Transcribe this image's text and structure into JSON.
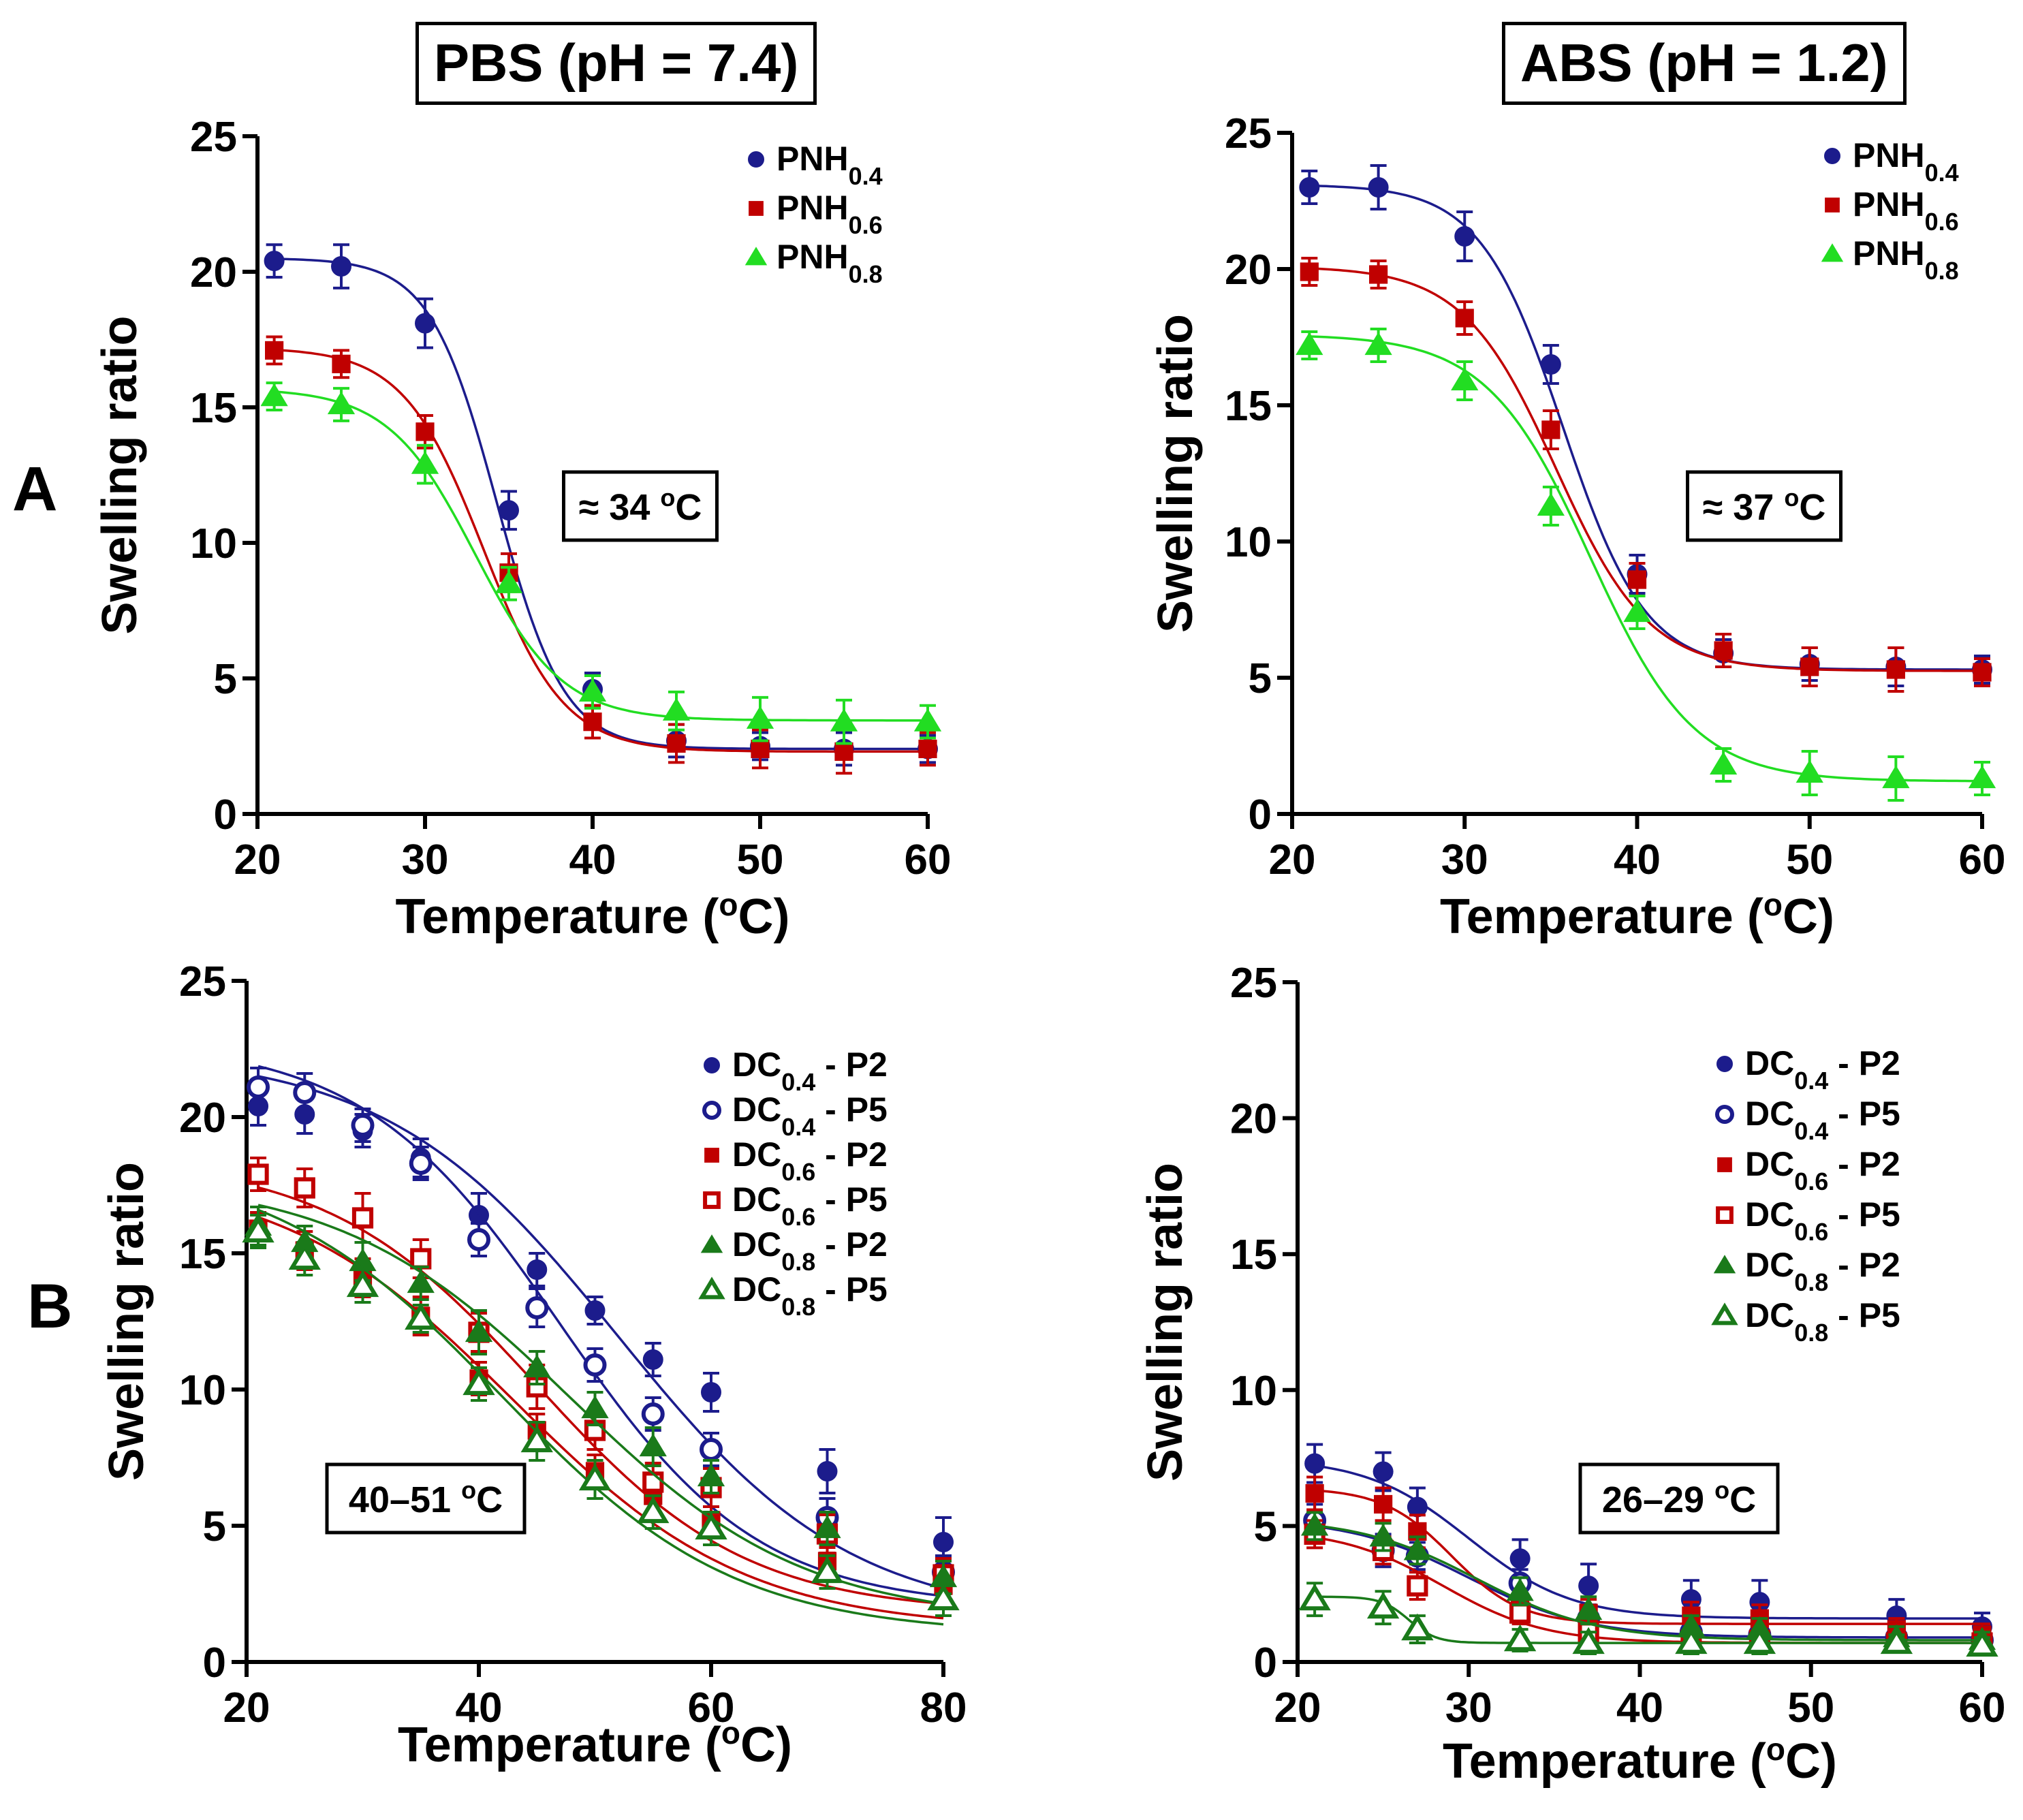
{
  "headers": {
    "pbs": "PBS (pH = 7.4)",
    "abs": "ABS (pH = 1.2)"
  },
  "row_labels": {
    "a": "A",
    "b": "B"
  },
  "colors": {
    "PNH0.4": "#1c1c8c",
    "PNH0.6": "#c00000",
    "PNH0.8": "#22dd22",
    "DC0.4": "#1c1c8c",
    "DC0.6": "#c00000",
    "DC0.8": "#1a7a1a"
  },
  "chart_data": [
    {
      "id": "A-PBS",
      "type": "scatter",
      "title": "PBS (pH = 7.4)",
      "xlabel": "Temperature (oC)",
      "ylabel": "Swelling ratio",
      "xlim": [
        20,
        60
      ],
      "ylim": [
        0,
        25
      ],
      "xticks": [
        20,
        30,
        40,
        50,
        60
      ],
      "yticks": [
        0,
        5,
        10,
        15,
        20,
        25
      ],
      "annotation": "≈ 34 oC",
      "legend_position": "top-right",
      "series": [
        {
          "name": "PNH0.4",
          "legend_base": "PNH",
          "legend_sub": "0.4",
          "marker": "circle",
          "color": "#1c1c8c",
          "x": [
            21,
            25,
            30,
            35,
            40,
            45,
            50,
            55,
            60
          ],
          "y": [
            20.4,
            20.2,
            18.1,
            11.2,
            4.6,
            2.7,
            2.5,
            2.4,
            2.4
          ],
          "err": [
            0.6,
            0.8,
            0.9,
            0.7,
            0.6,
            0.6,
            0.5,
            0.6,
            0.5
          ],
          "fit": {
            "top": 20.5,
            "bottom": 2.4,
            "x0": 34.3,
            "slope": 2.0
          }
        },
        {
          "name": "PNH0.6",
          "legend_base": "PNH",
          "legend_sub": "0.6",
          "marker": "square",
          "color": "#c00000",
          "x": [
            21,
            25,
            30,
            35,
            40,
            45,
            50,
            55,
            60
          ],
          "y": [
            17.1,
            16.6,
            14.1,
            8.9,
            3.4,
            2.6,
            2.4,
            2.3,
            2.4
          ],
          "err": [
            0.5,
            0.5,
            0.6,
            0.7,
            0.6,
            0.7,
            0.7,
            0.8,
            0.6
          ],
          "fit": {
            "top": 17.2,
            "bottom": 2.3,
            "x0": 33.5,
            "slope": 2.4
          }
        },
        {
          "name": "PNH0.8",
          "legend_base": "PNH",
          "legend_sub": "0.8",
          "marker": "triangle",
          "color": "#22dd22",
          "x": [
            21,
            25,
            30,
            35,
            40,
            45,
            50,
            55,
            60
          ],
          "y": [
            15.4,
            15.1,
            12.9,
            8.5,
            4.5,
            3.8,
            3.5,
            3.4,
            3.4
          ],
          "err": [
            0.5,
            0.6,
            0.7,
            0.6,
            0.6,
            0.7,
            0.8,
            0.8,
            0.6
          ],
          "fit": {
            "top": 15.7,
            "bottom": 3.45,
            "x0": 33.0,
            "slope": 2.6
          }
        }
      ]
    },
    {
      "id": "A-ABS",
      "type": "scatter",
      "title": "ABS (pH = 1.2)",
      "xlabel": "Temperature (oC)",
      "ylabel": "Swelling ratio",
      "xlim": [
        20,
        60
      ],
      "ylim": [
        0,
        25
      ],
      "xticks": [
        20,
        30,
        40,
        50,
        60
      ],
      "yticks": [
        0,
        5,
        10,
        15,
        20,
        25
      ],
      "annotation": "≈ 37 oC",
      "legend_position": "top-right",
      "series": [
        {
          "name": "PNH0.4",
          "legend_base": "PNH",
          "legend_sub": "0.4",
          "marker": "circle",
          "color": "#1c1c8c",
          "x": [
            21,
            25,
            30,
            35,
            40,
            45,
            50,
            55,
            60
          ],
          "y": [
            23.0,
            23.0,
            21.2,
            16.5,
            8.8,
            5.9,
            5.5,
            5.4,
            5.3
          ],
          "err": [
            0.6,
            0.8,
            0.9,
            0.7,
            0.7,
            0.5,
            0.6,
            0.7,
            0.5
          ],
          "fit": {
            "top": 23.1,
            "bottom": 5.3,
            "x0": 35.7,
            "slope": 2.4
          }
        },
        {
          "name": "PNH0.6",
          "legend_base": "PNH",
          "legend_sub": "0.6",
          "marker": "square",
          "color": "#c00000",
          "x": [
            21,
            25,
            30,
            35,
            40,
            45,
            50,
            55,
            60
          ],
          "y": [
            19.9,
            19.8,
            18.2,
            14.1,
            8.6,
            6.0,
            5.4,
            5.3,
            5.2
          ],
          "err": [
            0.5,
            0.5,
            0.6,
            0.7,
            0.6,
            0.6,
            0.7,
            0.8,
            0.5
          ],
          "fit": {
            "top": 20.1,
            "bottom": 5.25,
            "x0": 35.3,
            "slope": 2.7
          }
        },
        {
          "name": "PNH0.8",
          "legend_base": "PNH",
          "legend_sub": "0.8",
          "marker": "triangle",
          "color": "#22dd22",
          "x": [
            21,
            25,
            30,
            35,
            40,
            45,
            50,
            55,
            60
          ],
          "y": [
            17.2,
            17.2,
            15.9,
            11.3,
            7.4,
            1.8,
            1.5,
            1.3,
            1.3
          ],
          "err": [
            0.5,
            0.6,
            0.7,
            0.7,
            0.6,
            0.6,
            0.8,
            0.8,
            0.6
          ],
          "fit": {
            "top": 17.6,
            "bottom": 1.2,
            "x0": 37.3,
            "slope": 3.0
          }
        }
      ]
    },
    {
      "id": "B-PBS",
      "type": "scatter",
      "title": "",
      "xlabel": "Temperature (oC)",
      "ylabel": "Swelling ratio",
      "xlim": [
        20,
        80
      ],
      "ylim": [
        0,
        25
      ],
      "xticks": [
        20,
        40,
        60,
        80
      ],
      "yticks": [
        0,
        5,
        10,
        15,
        20,
        25
      ],
      "annotation": "40–51 oC",
      "legend_position": "right",
      "series": [
        {
          "name": "DC0.4 - P2",
          "legend_base": "DC",
          "legend_sub": "0.4",
          "legend_suffix": " - P2",
          "marker": "circle",
          "filled": true,
          "color": "#1c1c8c",
          "x": [
            21,
            25,
            30,
            35,
            40,
            45,
            50,
            55,
            60,
            70,
            80
          ],
          "y": [
            20.4,
            20.1,
            19.5,
            18.5,
            16.4,
            14.4,
            12.9,
            11.1,
            9.9,
            7.0,
            4.4
          ],
          "err": [
            0.7,
            0.7,
            0.6,
            0.7,
            0.8,
            0.6,
            0.5,
            0.6,
            0.7,
            0.8,
            0.9
          ],
          "fit": {
            "top": 22.4,
            "bottom": 1.5,
            "x0": 52.0,
            "slope": 10.0
          }
        },
        {
          "name": "DC0.4 - P5",
          "legend_base": "DC",
          "legend_sub": "0.4",
          "legend_suffix": " - P5",
          "marker": "circle",
          "filled": false,
          "color": "#1c1c8c",
          "x": [
            21,
            25,
            30,
            35,
            40,
            45,
            50,
            55,
            60,
            70,
            80
          ],
          "y": [
            21.1,
            20.9,
            19.7,
            18.3,
            15.5,
            13.0,
            10.9,
            9.1,
            7.8,
            5.3,
            3.3
          ],
          "err": [
            0.7,
            0.7,
            0.6,
            0.6,
            0.6,
            0.7,
            0.6,
            0.6,
            0.6,
            0.7,
            0.6
          ],
          "fit": {
            "top": 22.8,
            "bottom": 2.0,
            "x0": 47.0,
            "slope": 8.5
          }
        },
        {
          "name": "DC0.6 - P2",
          "legend_base": "DC",
          "legend_sub": "0.6",
          "legend_suffix": " - P2",
          "marker": "square",
          "filled": true,
          "color": "#c00000",
          "x": [
            21,
            25,
            30,
            35,
            40,
            45,
            50,
            55,
            60,
            70,
            80
          ],
          "y": [
            15.9,
            15.1,
            14.1,
            12.7,
            10.4,
            8.5,
            7.0,
            6.1,
            5.2,
            3.7,
            2.8
          ],
          "err": [
            0.6,
            0.7,
            0.7,
            0.7,
            0.6,
            0.6,
            0.6,
            0.6,
            0.5,
            0.5,
            0.6
          ],
          "fit": {
            "top": 18.0,
            "bottom": 1.2,
            "x0": 43.0,
            "slope": 10.0
          }
        },
        {
          "name": "DC0.6 - P5",
          "legend_base": "DC",
          "legend_sub": "0.6",
          "legend_suffix": " - P5",
          "marker": "square",
          "filled": false,
          "color": "#c00000",
          "x": [
            21,
            25,
            30,
            35,
            40,
            45,
            50,
            55,
            60,
            70,
            80
          ],
          "y": [
            17.9,
            17.4,
            16.3,
            14.8,
            12.1,
            10.1,
            8.5,
            6.6,
            6.4,
            4.7,
            3.2
          ],
          "err": [
            0.6,
            0.7,
            0.9,
            0.7,
            0.7,
            0.8,
            0.7,
            0.7,
            0.7,
            0.7,
            0.6
          ],
          "fit": {
            "top": 18.5,
            "bottom": 1.8,
            "x0": 45.0,
            "slope": 9.0
          }
        },
        {
          "name": "DC0.8 - P2",
          "legend_base": "DC",
          "legend_sub": "0.8",
          "legend_suffix": " - P2",
          "marker": "triangle",
          "filled": true,
          "color": "#1a7a1a",
          "x": [
            21,
            25,
            30,
            35,
            40,
            45,
            50,
            55,
            60,
            70,
            80
          ],
          "y": [
            16.0,
            15.4,
            14.7,
            13.9,
            12.1,
            10.8,
            9.3,
            7.9,
            6.8,
            4.9,
            3.1
          ],
          "err": [
            0.7,
            0.6,
            0.7,
            0.6,
            0.8,
            0.6,
            0.6,
            0.7,
            0.6,
            0.6,
            0.6
          ],
          "fit": {
            "top": 17.8,
            "bottom": 1.5,
            "x0": 48.0,
            "slope": 10.0
          }
        },
        {
          "name": "DC0.8 - P5",
          "legend_base": "DC",
          "legend_sub": "0.8",
          "legend_suffix": " - P5",
          "marker": "triangle",
          "filled": false,
          "color": "#1a7a1a",
          "x": [
            21,
            25,
            30,
            35,
            40,
            45,
            50,
            55,
            60,
            70,
            80
          ],
          "y": [
            15.8,
            14.8,
            13.8,
            12.6,
            10.2,
            8.1,
            6.7,
            5.5,
            4.9,
            3.3,
            2.3
          ],
          "err": [
            0.6,
            0.6,
            0.6,
            0.5,
            0.6,
            0.7,
            0.7,
            0.6,
            0.6,
            0.6,
            0.6
          ],
          "fit": {
            "top": 18.5,
            "bottom": 1.0,
            "x0": 42.0,
            "slope": 10.0
          }
        }
      ]
    },
    {
      "id": "B-ABS",
      "type": "scatter",
      "title": "",
      "xlabel": "Temperature (oC)",
      "ylabel": "Swelling ratio",
      "xlim": [
        20,
        60
      ],
      "ylim": [
        0,
        25
      ],
      "xticks": [
        20,
        30,
        40,
        50,
        60
      ],
      "yticks": [
        0,
        5,
        10,
        15,
        20,
        25
      ],
      "annotation": "26–29 oC",
      "legend_position": "right",
      "series": [
        {
          "name": "DC0.4 - P2",
          "legend_base": "DC",
          "legend_sub": "0.4",
          "legend_suffix": " - P2",
          "marker": "circle",
          "filled": true,
          "color": "#1c1c8c",
          "x": [
            21,
            25,
            27,
            33,
            37,
            43,
            47,
            55,
            60
          ],
          "y": [
            7.3,
            7.0,
            5.7,
            3.8,
            2.8,
            2.3,
            2.2,
            1.7,
            1.3
          ],
          "err": [
            0.7,
            0.7,
            0.7,
            0.7,
            0.8,
            0.7,
            0.8,
            0.6,
            0.5
          ],
          "fit": {
            "top": 7.5,
            "bottom": 1.6,
            "x0": 30.0,
            "slope": 3.0
          }
        },
        {
          "name": "DC0.4 - P5",
          "legend_base": "DC",
          "legend_sub": "0.4",
          "legend_suffix": " - P5",
          "marker": "circle",
          "filled": false,
          "color": "#1c1c8c",
          "x": [
            21,
            25,
            27,
            33,
            37,
            43,
            47,
            55,
            60
          ],
          "y": [
            5.2,
            4.1,
            3.9,
            2.9,
            1.6,
            1.1,
            1.0,
            0.9,
            0.8
          ],
          "err": [
            0.6,
            0.6,
            0.5,
            0.5,
            0.5,
            0.5,
            0.5,
            0.4,
            0.4
          ],
          "fit": {
            "top": 5.3,
            "bottom": 0.9,
            "x0": 30.0,
            "slope": 3.5
          }
        },
        {
          "name": "DC0.6 - P2",
          "legend_base": "DC",
          "legend_sub": "0.6",
          "legend_suffix": " - P2",
          "marker": "square",
          "filled": true,
          "color": "#c00000",
          "x": [
            21,
            25,
            27,
            33,
            37,
            43,
            47,
            55,
            60
          ],
          "y": [
            6.2,
            5.8,
            4.8,
            2.0,
            1.8,
            1.7,
            1.6,
            1.2,
            1.0
          ],
          "err": [
            0.6,
            0.6,
            0.6,
            0.5,
            0.5,
            0.5,
            0.5,
            0.4,
            0.4
          ],
          "fit": {
            "top": 6.4,
            "bottom": 1.4,
            "x0": 29.0,
            "slope": 2.0
          }
        },
        {
          "name": "DC0.6 - P5",
          "legend_base": "DC",
          "legend_sub": "0.6",
          "legend_suffix": " - P5",
          "marker": "square",
          "filled": false,
          "color": "#c00000",
          "x": [
            21,
            25,
            27,
            33,
            37,
            43,
            47,
            55,
            60
          ],
          "y": [
            4.7,
            4.1,
            2.8,
            1.8,
            1.1,
            0.8,
            0.8,
            0.7,
            0.7
          ],
          "err": [
            0.5,
            0.5,
            0.5,
            0.4,
            0.4,
            0.4,
            0.4,
            0.3,
            0.3
          ],
          "fit": {
            "top": 4.9,
            "bottom": 0.7,
            "x0": 28.5,
            "slope": 3.0
          }
        },
        {
          "name": "DC0.8 - P2",
          "legend_base": "DC",
          "legend_sub": "0.8",
          "legend_suffix": " - P2",
          "marker": "triangle",
          "filled": true,
          "color": "#1a7a1a",
          "x": [
            21,
            25,
            27,
            33,
            37,
            43,
            47,
            55,
            60
          ],
          "y": [
            5.0,
            4.6,
            4.1,
            2.6,
            1.9,
            1.3,
            1.2,
            0.9,
            0.8
          ],
          "err": [
            0.5,
            0.5,
            0.5,
            0.5,
            0.5,
            0.4,
            0.4,
            0.4,
            0.3
          ],
          "fit": {
            "top": 5.3,
            "bottom": 0.8,
            "x0": 30.5,
            "slope": 3.5
          }
        },
        {
          "name": "DC0.8 - P5",
          "legend_base": "DC",
          "legend_sub": "0.8",
          "legend_suffix": " - P5",
          "marker": "triangle",
          "filled": false,
          "color": "#1a7a1a",
          "x": [
            21,
            25,
            27,
            33,
            37,
            43,
            47,
            55,
            60
          ],
          "y": [
            2.3,
            2.0,
            1.2,
            0.8,
            0.7,
            0.7,
            0.7,
            0.7,
            0.6
          ],
          "err": [
            0.6,
            0.6,
            0.5,
            0.4,
            0.4,
            0.4,
            0.4,
            0.3,
            0.3
          ],
          "fit": {
            "top": 2.4,
            "bottom": 0.7,
            "x0": 26.5,
            "slope": 0.8
          }
        }
      ]
    }
  ]
}
